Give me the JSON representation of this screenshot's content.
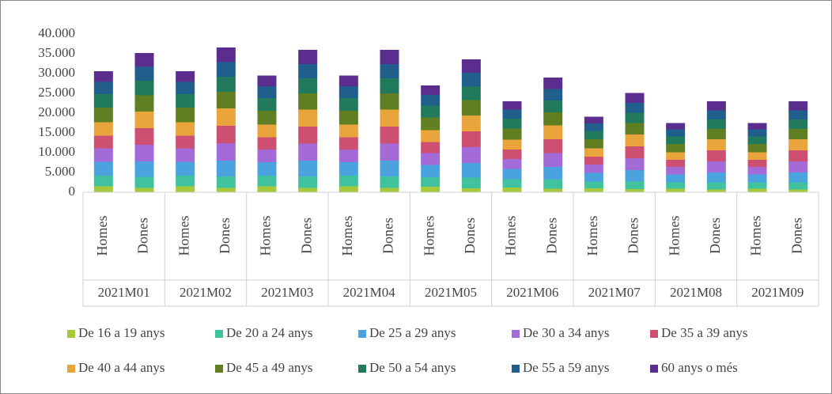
{
  "chart_data": {
    "type": "stacked_bar",
    "categories": [
      "Homes",
      "Dones",
      "Homes",
      "Dones",
      "Homes",
      "Dones",
      "Homes",
      "Dones",
      "Homes",
      "Dones",
      "Homes",
      "Dones",
      "Homes",
      "Dones",
      "Homes",
      "Dones",
      "Homes",
      "Dones"
    ],
    "groups": [
      "2021M01",
      "2021M02",
      "2021M03",
      "2021M04",
      "2021M05",
      "2021M06",
      "2021M07",
      "2021M08",
      "2021M09"
    ],
    "ylim": [
      0,
      40000
    ],
    "yticks": [
      0,
      {
        "value": 5000,
        "label": "5.000"
      },
      {
        "value": 10000,
        "label": "10.000"
      },
      {
        "value": 15000,
        "label": "15.000"
      },
      {
        "value": 20000,
        "label": "20.000"
      },
      {
        "value": 25000,
        "label": "25.000"
      },
      {
        "value": 30000,
        "label": "30.000"
      },
      {
        "value": 35000,
        "label": "35.000"
      },
      {
        "value": 40000,
        "label": "40.000"
      }
    ],
    "series": [
      {
        "name": "De 16 a 19 anys",
        "color": "#a6c93c",
        "values": [
          1500,
          1100,
          1500,
          1100,
          1500,
          1100,
          1500,
          1100,
          1400,
          1000,
          1200,
          900,
          1000,
          800,
          900,
          700,
          900,
          700
        ]
      },
      {
        "name": "De 20 a 24 anys",
        "color": "#3fc29d",
        "values": [
          2700,
          2800,
          2700,
          2900,
          2700,
          2900,
          2700,
          2900,
          2400,
          2700,
          2100,
          2300,
          1700,
          2000,
          1600,
          1800,
          1600,
          1800
        ]
      },
      {
        "name": "De 25 a 29 anys",
        "color": "#4aa3df",
        "values": [
          3500,
          3900,
          3500,
          4000,
          3400,
          4000,
          3400,
          4000,
          3100,
          3700,
          2600,
          3200,
          2200,
          2800,
          2000,
          2500,
          2000,
          2500
        ]
      },
      {
        "name": "De 30 a 34 anys",
        "color": "#a46ad8",
        "values": [
          3400,
          4200,
          3400,
          4400,
          3200,
          4300,
          3200,
          4300,
          3000,
          4000,
          2500,
          3500,
          2100,
          3000,
          1900,
          2800,
          1900,
          2800
        ]
      },
      {
        "name": "De 35 a 39 anys",
        "color": "#cd4f72",
        "values": [
          3200,
          4200,
          3200,
          4400,
          3100,
          4300,
          3100,
          4300,
          2800,
          4000,
          2400,
          3500,
          2000,
          3000,
          1800,
          2800,
          1800,
          2800
        ]
      },
      {
        "name": "De 40 a 44 anys",
        "color": "#e9a43c",
        "values": [
          3400,
          4200,
          3400,
          4400,
          3200,
          4300,
          3200,
          4300,
          3000,
          4000,
          2500,
          3500,
          2100,
          3000,
          1900,
          2800,
          1900,
          2800
        ]
      },
      {
        "name": "De 45 a 49 anys",
        "color": "#5f7f22",
        "values": [
          3700,
          4100,
          3700,
          4200,
          3500,
          4100,
          3500,
          4100,
          3200,
          3900,
          2800,
          3300,
          2300,
          2900,
          2100,
          2600,
          2100,
          2600
        ]
      },
      {
        "name": "De 50 a 54 anys",
        "color": "#217a5e",
        "values": [
          3400,
          3700,
          3400,
          3800,
          3200,
          3800,
          3200,
          3800,
          3000,
          3500,
          2500,
          3000,
          2100,
          2600,
          1900,
          2400,
          1900,
          2400
        ]
      },
      {
        "name": "De 55 a 59 anys",
        "color": "#205f8c",
        "values": [
          3100,
          3500,
          3100,
          3700,
          3000,
          3600,
          3000,
          3600,
          2700,
          3400,
          2300,
          2900,
          1900,
          2500,
          1800,
          2300,
          1800,
          2300
        ]
      },
      {
        "name": "60 anys o més",
        "color": "#5b2d8e",
        "values": [
          2700,
          3500,
          2700,
          3700,
          2700,
          3600,
          2700,
          3600,
          2400,
          3400,
          2100,
          2900,
          1700,
          2500,
          1600,
          2300,
          1600,
          2300
        ]
      }
    ]
  }
}
